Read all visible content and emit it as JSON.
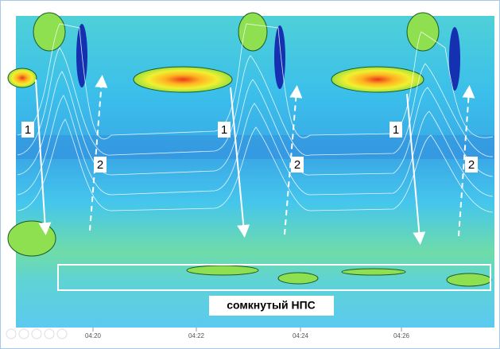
{
  "annotations": {
    "arrow_labels_1": [
      "1",
      "1",
      "1"
    ],
    "arrow_labels_2": [
      "2",
      "2",
      "2"
    ],
    "region_label": "сомкнутый НПС"
  },
  "x_axis": {
    "tick_labels": [
      "04:20",
      "04:22",
      "04:24",
      "04:26"
    ]
  }
}
